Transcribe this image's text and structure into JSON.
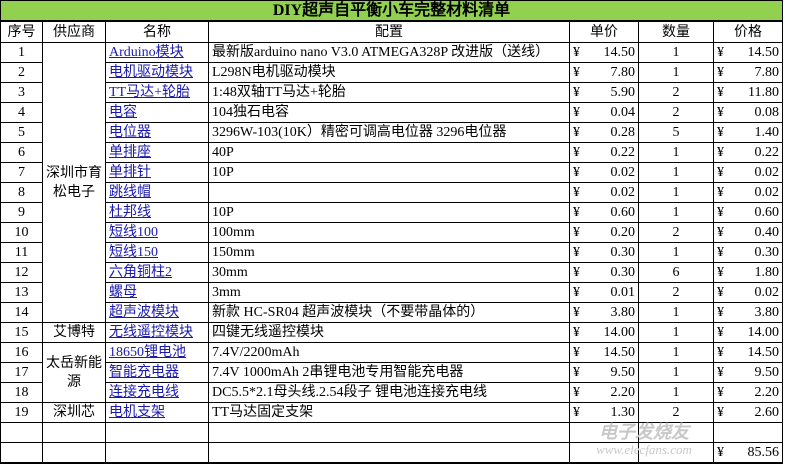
{
  "title": "DIY超声自平衡小车完整材料清单",
  "headers": [
    "序号",
    "供应商",
    "名称",
    "配置",
    "单价",
    "数量",
    "价格"
  ],
  "currency": "¥",
  "suppliers": [
    "深圳市育松电子",
    "艾博特",
    "太岳新能源",
    "深圳芯"
  ],
  "rows": [
    {
      "no": "1",
      "name": "Arduino模块",
      "config": "最新版arduino nano V3.0 ATMEGA328P 改进版（送线）",
      "unit": "14.50",
      "qty": "1",
      "price": "14.50"
    },
    {
      "no": "2",
      "name": "电机驱动模块",
      "config": "L298N电机驱动模块",
      "unit": "7.80",
      "qty": "1",
      "price": "7.80"
    },
    {
      "no": "3",
      "name": "TT马达+轮胎",
      "config": "1:48双轴TT马达+轮胎",
      "unit": "5.90",
      "qty": "2",
      "price": "11.80"
    },
    {
      "no": "4",
      "name": "电容",
      "config": "104独石电容",
      "unit": "0.04",
      "qty": "2",
      "price": "0.08"
    },
    {
      "no": "5",
      "name": "电位器",
      "config": "3296W-103(10K）精密可调高电位器 3296电位器",
      "unit": "0.28",
      "qty": "5",
      "price": "1.40"
    },
    {
      "no": "6",
      "name": "单排座",
      "config": "40P",
      "unit": "0.22",
      "qty": "1",
      "price": "0.22"
    },
    {
      "no": "7",
      "name": "单排针",
      "config": "10P",
      "unit": "0.02",
      "qty": "1",
      "price": "0.02"
    },
    {
      "no": "8",
      "name": "跳线帽",
      "config": "",
      "unit": "0.02",
      "qty": "1",
      "price": "0.02"
    },
    {
      "no": "9",
      "name": "杜邦线",
      "config": "10P",
      "unit": "0.60",
      "qty": "1",
      "price": "0.60"
    },
    {
      "no": "10",
      "name": "短线100",
      "config": "100mm",
      "unit": "0.20",
      "qty": "2",
      "price": "0.40"
    },
    {
      "no": "11",
      "name": "短线150",
      "config": "150mm",
      "unit": "0.30",
      "qty": "1",
      "price": "0.30"
    },
    {
      "no": "12",
      "name": "六角铜柱2",
      "config": "30mm",
      "unit": "0.30",
      "qty": "6",
      "price": "1.80"
    },
    {
      "no": "13",
      "name": "螺母",
      "config": "3mm",
      "unit": "0.01",
      "qty": "2",
      "price": "0.02"
    },
    {
      "no": "14",
      "name": "超声波模块",
      "config": "新款 HC-SR04 超声波模块（不要带晶体的）",
      "unit": "3.80",
      "qty": "1",
      "price": "3.80"
    },
    {
      "no": "15",
      "name": "无线遥控模块",
      "config": "四键无线遥控模块",
      "unit": "14.00",
      "qty": "1",
      "price": "14.00"
    },
    {
      "no": "16",
      "name": "18650锂电池",
      "config": "7.4V/2200mAh",
      "unit": "14.50",
      "qty": "1",
      "price": "14.50"
    },
    {
      "no": "17",
      "name": "智能充电器",
      "config": "7.4V 1000mAh 2串锂电池专用智能充电器",
      "unit": "9.50",
      "qty": "1",
      "price": "9.50"
    },
    {
      "no": "18",
      "name": "连接充电线",
      "config": "DC5.5*2.1母头线.2.54段子 锂电池连接充电线",
      "unit": "2.20",
      "qty": "1",
      "price": "2.20"
    },
    {
      "no": "19",
      "name": "电机支架",
      "config": "TT马达固定支架",
      "unit": "1.30",
      "qty": "2",
      "price": "2.60"
    }
  ],
  "total": "85.56",
  "watermark": {
    "brand": "电子发烧友",
    "url": "www.elecfans.com"
  },
  "colors": {
    "title_bg": "#92d050",
    "link": "#1a1ab0"
  }
}
